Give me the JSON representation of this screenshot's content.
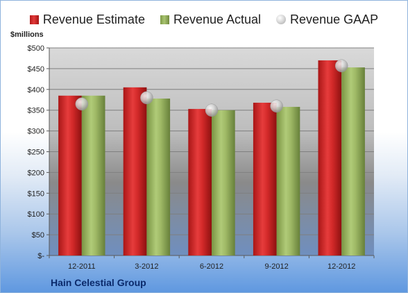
{
  "chart_data": {
    "type": "bar",
    "title": "",
    "xlabel": "",
    "ylabel": "$millions",
    "categories": [
      "12-2011",
      "3-2012",
      "6-2012",
      "9-2012",
      "12-2012"
    ],
    "series": [
      {
        "name": "Revenue Estimate",
        "kind": "bar",
        "color": "#cc2222",
        "values": [
          385,
          405,
          353,
          368,
          470
        ]
      },
      {
        "name": "Revenue Actual",
        "kind": "bar",
        "color": "#9bb85e",
        "values": [
          385,
          378,
          350,
          358,
          453
        ]
      },
      {
        "name": "Revenue GAAP",
        "kind": "marker",
        "color": "#c8c8c8",
        "values": [
          365,
          380,
          350,
          360,
          457
        ]
      }
    ],
    "ylim": [
      0,
      500
    ],
    "yticks": [
      0,
      50,
      100,
      150,
      200,
      250,
      300,
      350,
      400,
      450,
      500
    ],
    "ytick_labels": [
      "$-",
      "$50",
      "$100",
      "$150",
      "$200",
      "$250",
      "$300",
      "$350",
      "$400",
      "$450",
      "$500"
    ],
    "grid": true,
    "legend_position": "top",
    "company": "Hain Celestial Group"
  }
}
